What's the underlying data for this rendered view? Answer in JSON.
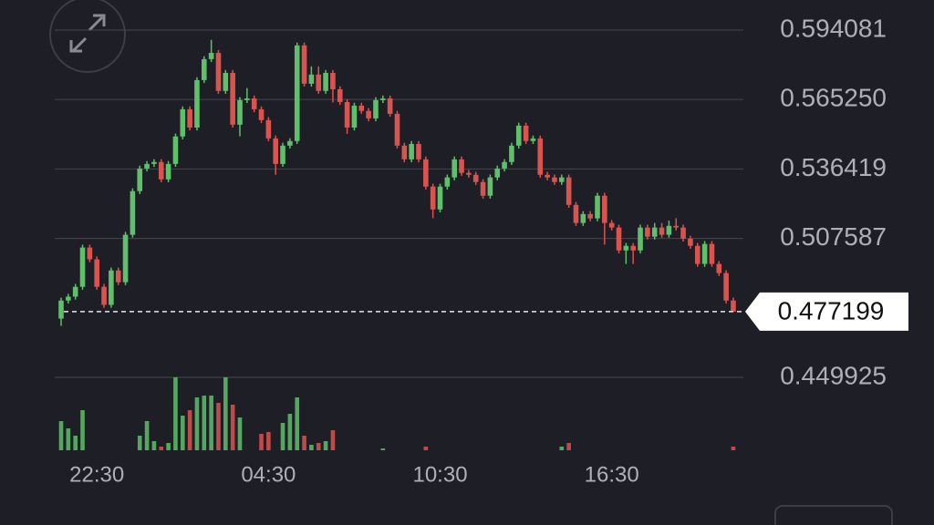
{
  "chart_data": {
    "type": "candlestick",
    "categories": [
      null,
      null,
      null,
      null,
      null,
      "22:30",
      null,
      null,
      null,
      null,
      null,
      null,
      null,
      null,
      null,
      null,
      null,
      null,
      null,
      null,
      null,
      null,
      null,
      null,
      null,
      null,
      null,
      null,
      null,
      "04:30",
      null,
      null,
      null,
      null,
      null,
      null,
      null,
      null,
      null,
      null,
      null,
      null,
      null,
      null,
      null,
      null,
      null,
      null,
      null,
      null,
      null,
      null,
      null,
      "10:30",
      null,
      null,
      null,
      null,
      null,
      null,
      null,
      null,
      null,
      null,
      null,
      null,
      null,
      null,
      null,
      null,
      null,
      null,
      null,
      null,
      null,
      null,
      null,
      "16:30",
      null,
      null,
      null,
      null,
      null,
      null,
      null,
      null,
      null,
      null,
      null,
      null,
      null,
      null,
      null,
      null,
      null
    ],
    "open": [
      0.4743,
      0.4818,
      0.4834,
      0.4875,
      0.5038,
      0.4989,
      0.4875,
      0.48,
      0.4943,
      0.4894,
      0.5091,
      0.5272,
      0.5366,
      0.5385,
      0.5393,
      0.5321,
      0.5385,
      0.5499,
      0.5612,
      0.5536,
      0.5733,
      0.582,
      0.5846,
      0.5688,
      0.5763,
      0.5548,
      0.565,
      0.5657,
      0.5612,
      0.5567,
      0.5491,
      0.5385,
      0.5461,
      0.548,
      0.5877,
      0.5718,
      0.5756,
      0.5688,
      0.5763,
      0.5695,
      0.5642,
      0.5536,
      0.5627,
      0.5605,
      0.5574,
      0.565,
      0.5657,
      0.5593,
      0.5461,
      0.5404,
      0.5468,
      0.5404,
      0.5291,
      0.5196,
      0.5291,
      0.5329,
      0.5404,
      0.5348,
      0.534,
      0.531,
      0.5253,
      0.5329,
      0.5366,
      0.5393,
      0.5461,
      0.5544,
      0.548,
      0.5491,
      0.534,
      0.5329,
      0.531,
      0.5329,
      0.5215,
      0.514,
      0.5177,
      0.5159,
      0.5253,
      0.514,
      0.5121,
      0.5026,
      0.5045,
      0.5026,
      0.5121,
      0.5083,
      0.5121,
      0.5091,
      0.5128,
      0.5121,
      0.5075,
      0.5045,
      0.497,
      0.5053,
      0.497,
      0.4932,
      0.4818
    ],
    "high": [
      0.483,
      0.4846,
      0.4887,
      0.505,
      0.505,
      0.5001,
      0.4887,
      0.4955,
      0.4955,
      0.5103,
      0.5284,
      0.5378,
      0.5397,
      0.5405,
      0.5405,
      0.5397,
      0.5511,
      0.5624,
      0.5624,
      0.5745,
      0.5832,
      0.59,
      0.5858,
      0.5775,
      0.5775,
      0.5662,
      0.57,
      0.5669,
      0.5624,
      0.5579,
      0.5503,
      0.5473,
      0.5492,
      0.5889,
      0.5889,
      0.579,
      0.579,
      0.5775,
      0.5775,
      0.5707,
      0.5654,
      0.5639,
      0.5639,
      0.5617,
      0.5662,
      0.5669,
      0.5669,
      0.5605,
      0.5473,
      0.548,
      0.548,
      0.5416,
      0.5303,
      0.5303,
      0.5341,
      0.5416,
      0.5416,
      0.536,
      0.5352,
      0.5322,
      0.5341,
      0.5378,
      0.5405,
      0.5473,
      0.5556,
      0.5556,
      0.5503,
      0.5503,
      0.5352,
      0.5341,
      0.5341,
      0.5341,
      0.5227,
      0.5189,
      0.5189,
      0.5265,
      0.5265,
      0.5152,
      0.5133,
      0.5057,
      0.5057,
      0.5133,
      0.5133,
      0.514,
      0.514,
      0.515,
      0.516,
      0.5133,
      0.5087,
      0.5057,
      0.5065,
      0.5065,
      0.4982,
      0.4944,
      0.483
    ],
    "low": [
      0.4713,
      0.4806,
      0.4822,
      0.4863,
      0.4977,
      0.4863,
      0.4788,
      0.4788,
      0.4882,
      0.4882,
      0.5079,
      0.526,
      0.5354,
      0.5373,
      0.5309,
      0.5309,
      0.5373,
      0.5487,
      0.5524,
      0.5524,
      0.5721,
      0.5808,
      0.5676,
      0.5676,
      0.5536,
      0.55,
      0.5638,
      0.56,
      0.5555,
      0.5479,
      0.534,
      0.5373,
      0.5449,
      0.5468,
      0.5706,
      0.5706,
      0.5676,
      0.5676,
      0.564,
      0.563,
      0.551,
      0.5524,
      0.5593,
      0.5562,
      0.5562,
      0.5638,
      0.5581,
      0.5449,
      0.5392,
      0.5392,
      0.5392,
      0.5279,
      0.516,
      0.5184,
      0.5279,
      0.5317,
      0.5336,
      0.5328,
      0.5298,
      0.5241,
      0.5241,
      0.5317,
      0.5354,
      0.5381,
      0.5449,
      0.5468,
      0.5468,
      0.5328,
      0.5317,
      0.5298,
      0.5298,
      0.5203,
      0.5128,
      0.5128,
      0.5147,
      0.5147,
      0.505,
      0.5109,
      0.5014,
      0.497,
      0.497,
      0.5014,
      0.5071,
      0.5071,
      0.5079,
      0.5079,
      0.5109,
      0.5063,
      0.5033,
      0.4958,
      0.4958,
      0.4958,
      0.492,
      0.4806,
      0.477
    ],
    "close": [
      0.4818,
      0.4834,
      0.4875,
      0.5038,
      0.4989,
      0.4875,
      0.48,
      0.4943,
      0.4894,
      0.5091,
      0.5272,
      0.5366,
      0.5385,
      0.5393,
      0.5321,
      0.5385,
      0.5499,
      0.5612,
      0.5536,
      0.5733,
      0.582,
      0.5846,
      0.5688,
      0.5763,
      0.5548,
      0.565,
      0.5657,
      0.5612,
      0.5567,
      0.5491,
      0.5385,
      0.5461,
      0.548,
      0.5877,
      0.5718,
      0.5756,
      0.5688,
      0.5763,
      0.5695,
      0.5642,
      0.5536,
      0.5627,
      0.5605,
      0.5574,
      0.565,
      0.5657,
      0.5593,
      0.5461,
      0.5404,
      0.5468,
      0.5404,
      0.5291,
      0.5196,
      0.5291,
      0.5329,
      0.5404,
      0.5348,
      0.534,
      0.531,
      0.5253,
      0.5329,
      0.5366,
      0.5393,
      0.5461,
      0.5544,
      0.548,
      0.5491,
      0.534,
      0.5329,
      0.531,
      0.5329,
      0.5215,
      0.514,
      0.5177,
      0.5159,
      0.5253,
      0.514,
      0.5121,
      0.5026,
      0.5045,
      0.5026,
      0.5121,
      0.5083,
      0.5121,
      0.5091,
      0.5128,
      0.5121,
      0.5075,
      0.5045,
      0.497,
      0.5053,
      0.497,
      0.4932,
      0.4818,
      0.477199
    ],
    "volume": [
      32,
      24,
      16,
      44,
      0,
      0,
      0,
      0,
      0,
      0,
      0,
      16,
      32,
      10,
      4,
      8,
      80,
      38,
      44,
      58,
      60,
      60,
      52,
      80,
      50,
      36,
      0,
      0,
      18,
      20,
      0,
      30,
      40,
      58,
      16,
      6,
      8,
      10,
      22,
      0,
      0,
      0,
      0,
      0,
      0,
      2,
      0,
      0,
      0,
      0,
      0,
      4,
      0,
      0,
      0,
      0,
      0,
      0,
      0,
      0,
      0,
      0,
      0,
      0,
      0,
      0,
      0,
      0,
      0,
      0,
      4,
      8,
      0,
      0,
      0,
      0,
      0,
      0,
      0,
      0,
      0,
      0,
      0,
      0,
      0,
      0,
      0,
      0,
      0,
      0,
      0,
      0,
      0,
      0,
      4
    ],
    "up_color": "#5fbf6a",
    "down_color": "#d9534f",
    "ylim": [
      0.449925,
      0.606552
    ],
    "yticks": [
      0.594081,
      {
        "value": 0.56525,
        "label": "0.565250"
      },
      0.536419,
      0.507587,
      0.449925
    ],
    "grid": true,
    "last_price": 0.477199
  }
}
